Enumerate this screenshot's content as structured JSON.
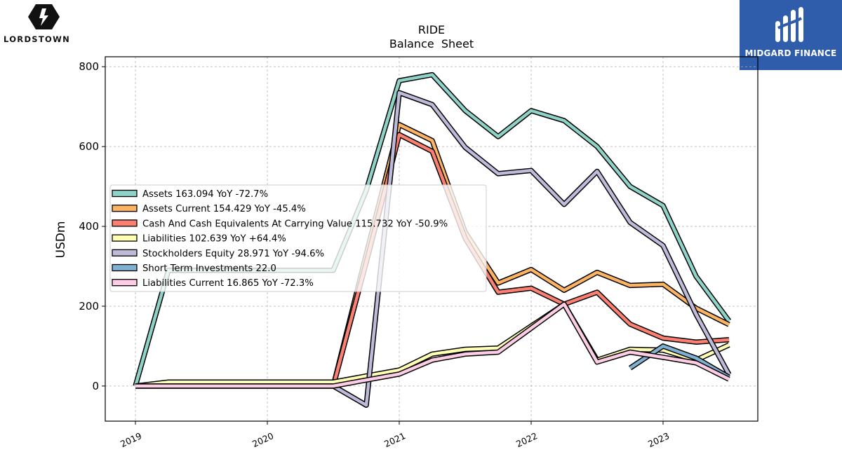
{
  "brand_left": {
    "name": "LORDSTOWN"
  },
  "brand_right": {
    "name": "MIDGARD FINANCE"
  },
  "chart_data": {
    "type": "line",
    "title": "RIDE",
    "subtitle": "Balance  Sheet",
    "xlabel": "",
    "ylabel": "USDm",
    "ylim": [
      -88,
      825
    ],
    "yticks": [
      0,
      200,
      400,
      600,
      800
    ],
    "xticks": [
      "2019",
      "2020",
      "2021",
      "2022",
      "2023"
    ],
    "x_quarters": [
      "2019-Q1",
      "2019-Q2",
      "2019-Q3",
      "2019-Q4",
      "2020-Q1",
      "2020-Q2",
      "2020-Q3",
      "2020-Q4",
      "2021-Q1",
      "2021-Q2",
      "2021-Q3",
      "2021-Q4",
      "2022-Q1",
      "2022-Q2",
      "2022-Q3",
      "2022-Q4",
      "2023-Q1",
      "2023-Q2",
      "2023-Q3"
    ],
    "grid": true,
    "legend_position": "center-left",
    "series": [
      {
        "name": "Assets",
        "legend": "Assets  163.094 YoY -72.7%",
        "color": "#8dd3c7",
        "values": [
          0,
          290,
          290,
          290,
          290,
          290,
          290,
          490,
          765,
          780,
          690,
          625,
          690,
          665,
          600,
          500,
          452,
          275,
          163
        ]
      },
      {
        "name": "Assets Current",
        "legend": "Assets Current  154.429 YoY -45.4%",
        "color": "#fdb462",
        "values": [
          0,
          0,
          0,
          0,
          0,
          0,
          0,
          330,
          655,
          615,
          385,
          258,
          292,
          240,
          285,
          252,
          255,
          195,
          154
        ]
      },
      {
        "name": "Cash And Cash Equivalents At Carrying Value",
        "legend": "Cash And Cash Equivalents At Carrying Value  115.732 YoY -50.9%",
        "color": "#fb8072",
        "values": [
          0,
          0,
          0,
          0,
          0,
          0,
          0,
          310,
          630,
          588,
          370,
          235,
          245,
          205,
          235,
          155,
          120,
          110,
          116
        ]
      },
      {
        "name": "Liabilities",
        "legend": "Liabilities  102.639 YoY +64.4%",
        "color": "#ffffb3",
        "values": [
          0,
          10,
          10,
          10,
          10,
          10,
          10,
          25,
          40,
          80,
          92,
          95,
          150,
          205,
          65,
          92,
          90,
          65,
          103
        ]
      },
      {
        "name": "Stockholders Equity",
        "legend": "Stockholders Equity  28.971 YoY -94.6%",
        "color": "#bebada",
        "values": [
          0,
          0,
          0,
          0,
          0,
          0,
          0,
          -48,
          735,
          705,
          598,
          532,
          540,
          455,
          538,
          410,
          352,
          180,
          29
        ]
      },
      {
        "name": "Short Term Investments",
        "legend": "Short Term Investments  22.0",
        "color": "#80b1d3",
        "values": [
          null,
          null,
          null,
          null,
          null,
          null,
          null,
          null,
          null,
          null,
          null,
          null,
          null,
          null,
          null,
          45,
          100,
          70,
          22
        ]
      },
      {
        "name": "Liabilities Current",
        "legend": "Liabilities Current  16.865 YoY -72.3%",
        "color": "#fccde5",
        "values": [
          0,
          0,
          0,
          0,
          0,
          0,
          0,
          15,
          30,
          65,
          80,
          85,
          145,
          205,
          60,
          85,
          72,
          58,
          17
        ]
      }
    ]
  }
}
